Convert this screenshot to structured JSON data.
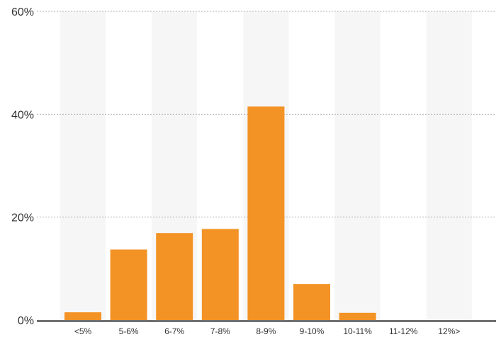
{
  "chart_data": {
    "type": "bar",
    "categories": [
      "<5%",
      "5-6%",
      "6-7%",
      "7-8%",
      "8-9%",
      "9-10%",
      "10-11%",
      "11-12%",
      "12%>"
    ],
    "values": [
      1.5,
      13.7,
      16.9,
      17.7,
      41.5,
      7.0,
      1.4,
      0,
      0
    ],
    "ylim": [
      0,
      60
    ],
    "yticks": [
      {
        "value": 0,
        "label": "0%"
      },
      {
        "value": 20,
        "label": "20%"
      },
      {
        "value": 40,
        "label": "40%"
      },
      {
        "value": 60,
        "label": "60%"
      }
    ],
    "grid": true,
    "legend": "none",
    "colors": {
      "bar": "#f39325",
      "band": "#f6f6f6",
      "gridline": "#b0b0b0",
      "baseline": "#707070",
      "text": "#333333"
    }
  }
}
